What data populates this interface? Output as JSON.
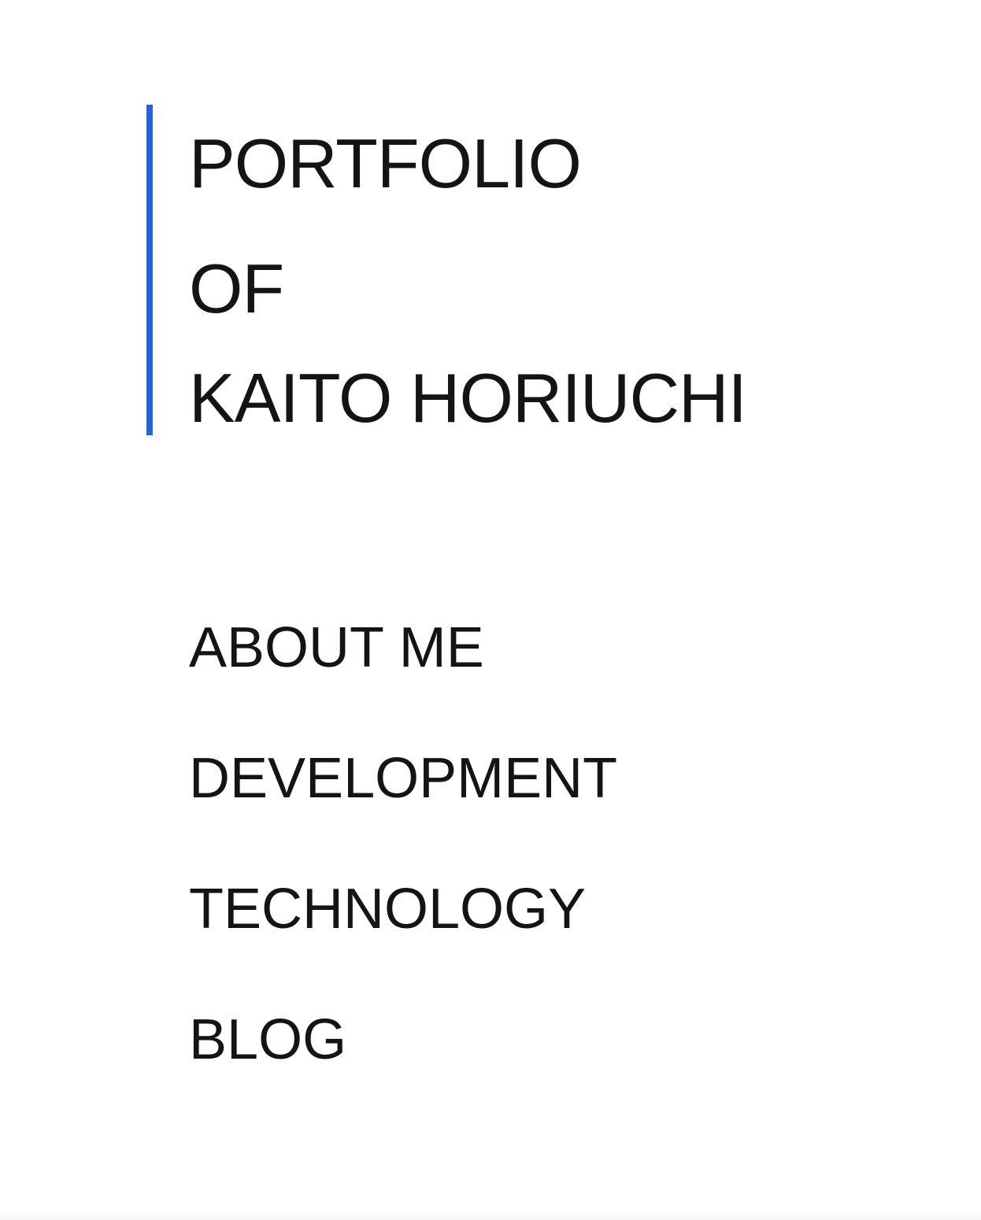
{
  "colors": {
    "accent": "#2563d9",
    "text": "#141414",
    "background": "#ffffff"
  },
  "header": {
    "title_lines": [
      "PORTFOLIO",
      "OF",
      "KAITO HORIUCHI"
    ]
  },
  "nav": {
    "items": [
      {
        "label": "ABOUT ME"
      },
      {
        "label": "DEVELOPMENT"
      },
      {
        "label": "TECHNOLOGY"
      },
      {
        "label": "BLOG"
      }
    ]
  }
}
